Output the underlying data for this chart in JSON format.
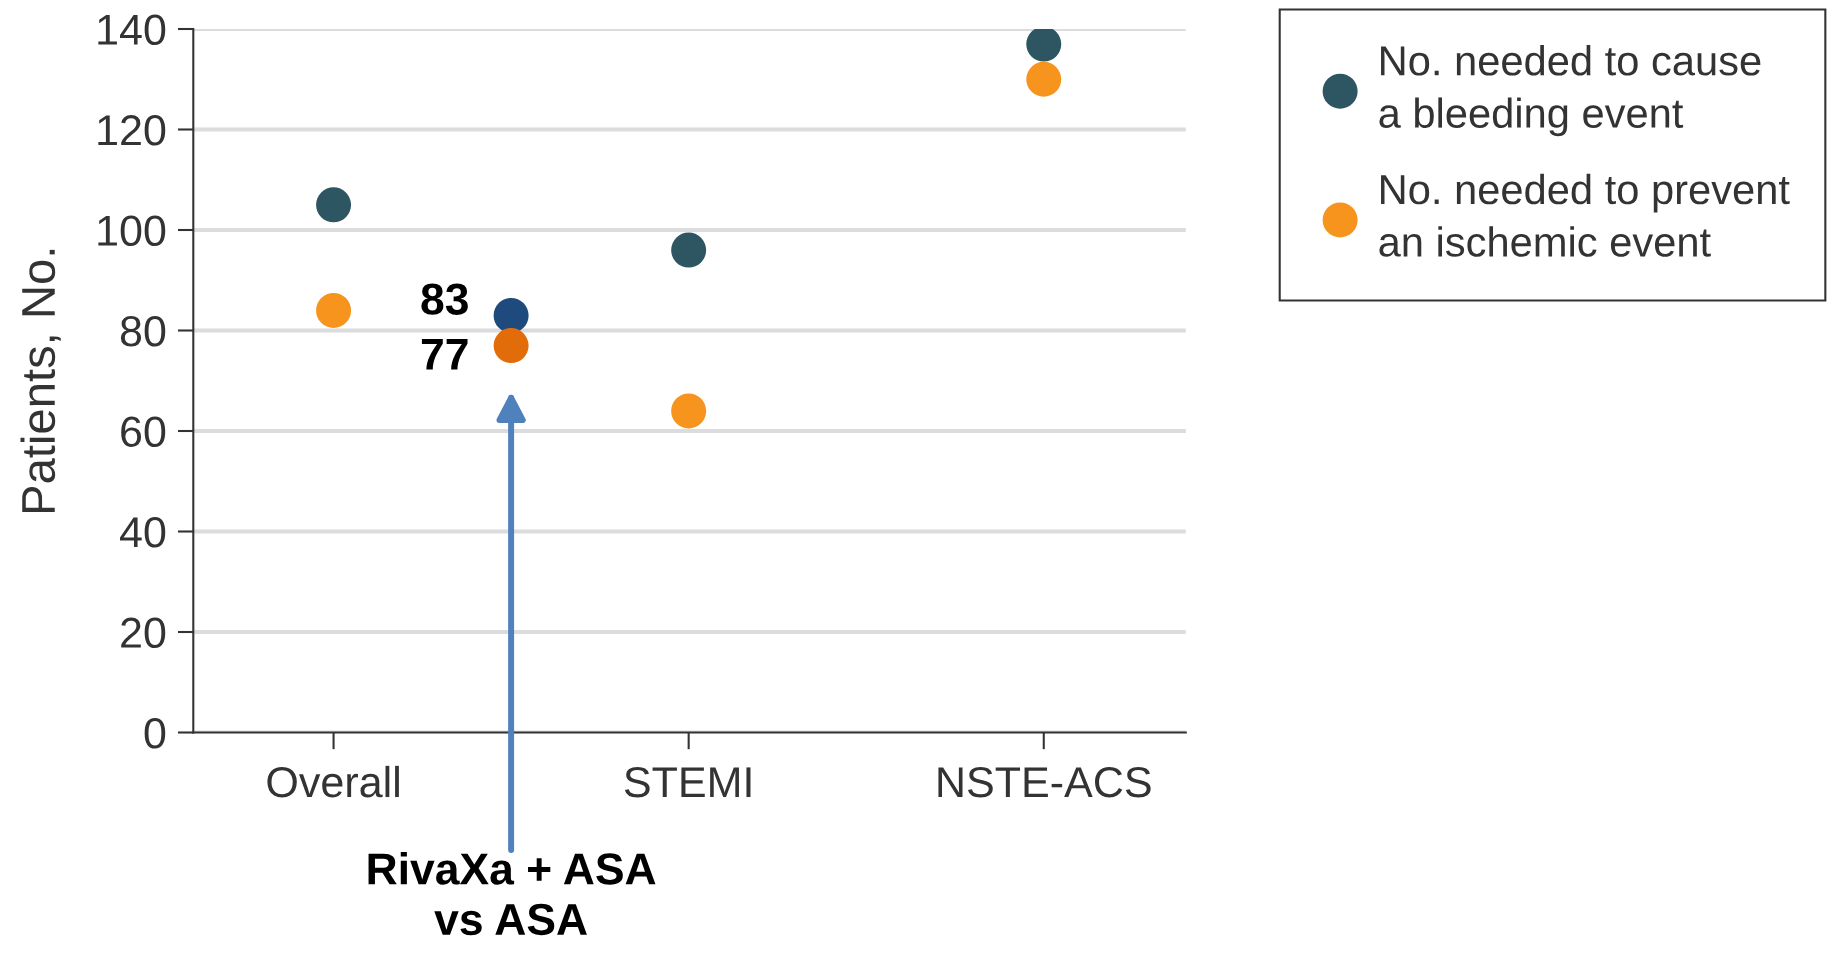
{
  "chart_data": {
    "type": "scatter",
    "categories": [
      "Overall",
      null,
      "STEMI",
      null,
      "NSTE-ACS"
    ],
    "ylabel": "Patients, No.",
    "ylim": [
      0,
      140
    ],
    "yticks": [
      0,
      20,
      40,
      60,
      80,
      100,
      120,
      140
    ],
    "grid": "y",
    "legend": "top right",
    "marker": "circle",
    "series": [
      {
        "name": "No. needed to cause\na bleeding event",
        "color": "#2e5562",
        "values": [
          105,
          null,
          96,
          null,
          137
        ]
      },
      {
        "name": "No. needed to prevent\nan ischemic event",
        "color": "#f7941d",
        "values": [
          84,
          null,
          64,
          null,
          130
        ]
      },
      {
        "color": "#1f4a7e",
        "values": [
          null,
          83,
          null,
          null,
          null
        ],
        "value_labels": [
          null,
          "83",
          null,
          null,
          null
        ]
      },
      {
        "color": "#e36c0a",
        "values": [
          null,
          77,
          null,
          null,
          null
        ],
        "value_labels": [
          null,
          "77",
          null,
          null,
          null
        ]
      }
    ],
    "annotations": [
      "RivaXa + ASA\nvs ASA"
    ]
  }
}
